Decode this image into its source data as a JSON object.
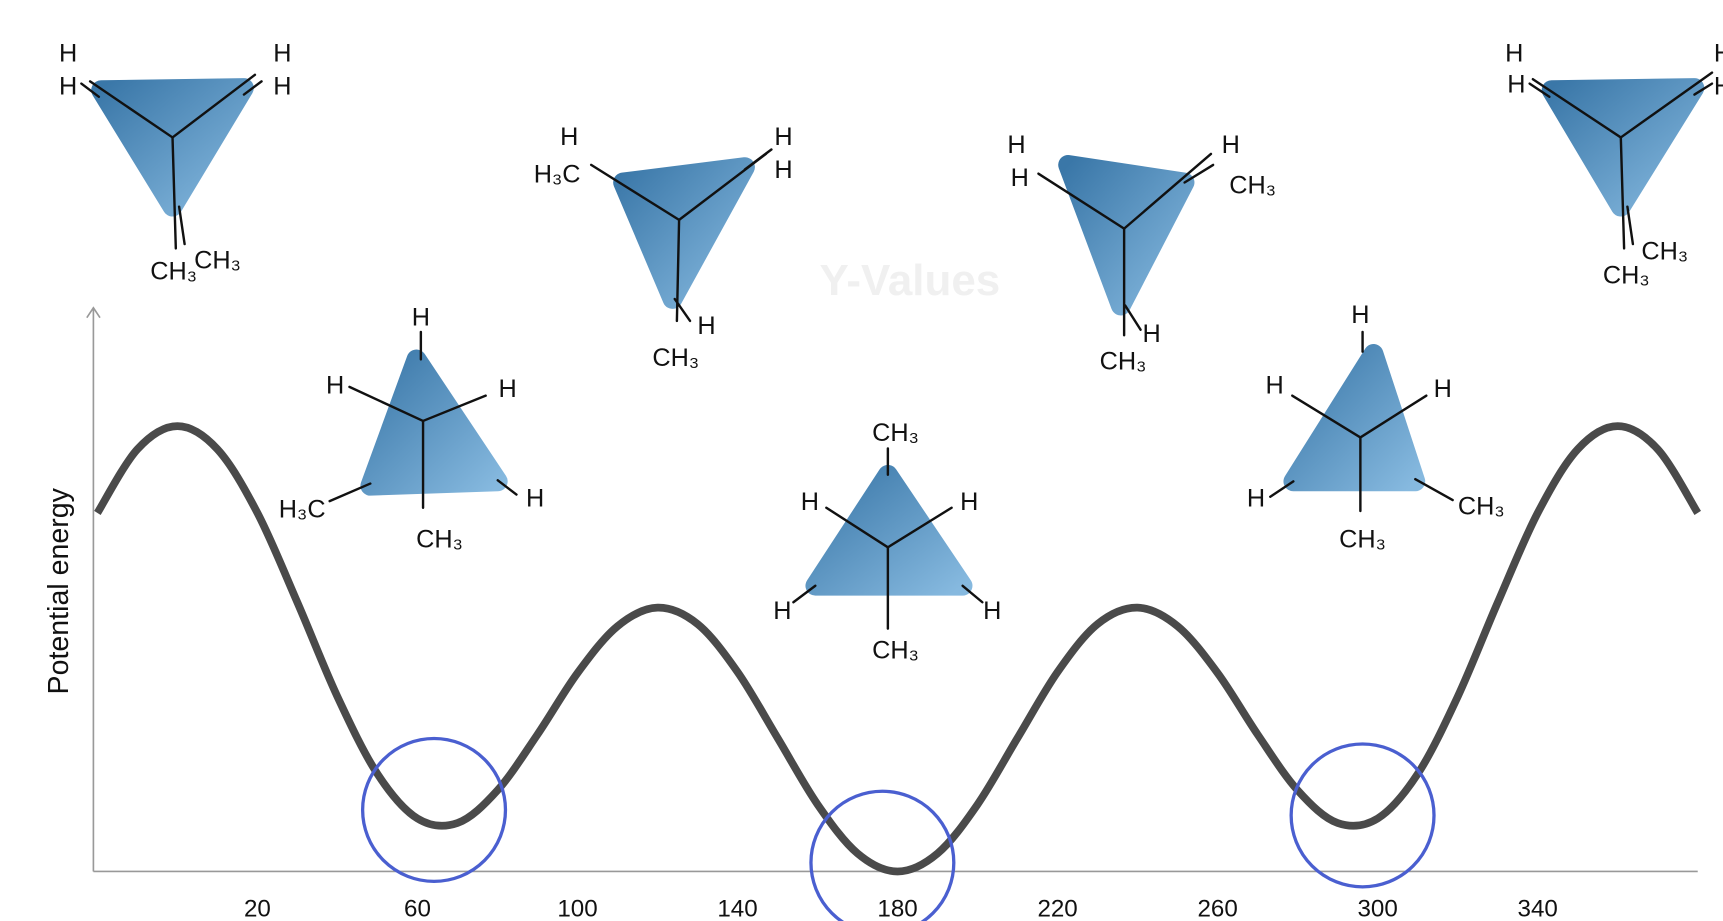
{
  "chart_data": {
    "type": "line",
    "y_label": "Potential energy",
    "watermark": "Y-Values",
    "x": [
      -20,
      -10,
      0,
      10,
      20,
      30,
      40,
      50,
      60,
      70,
      80,
      90,
      100,
      110,
      120,
      130,
      140,
      150,
      160,
      170,
      180,
      190,
      200,
      210,
      220,
      230,
      240,
      250,
      260,
      270,
      280,
      290,
      300,
      310,
      320,
      330,
      340,
      350,
      360,
      370,
      380
    ],
    "series": [
      {
        "color": "#4a4a4a",
        "values": [
          63.6,
          74.9,
          79.0,
          74.9,
          63.6,
          47.7,
          31.0,
          17.3,
          9.4,
          8.6,
          14.4,
          24.3,
          35.2,
          43.5,
          46.8,
          43.9,
          35.4,
          23.7,
          11.9,
          3.2,
          0.0,
          3.2,
          11.9,
          23.7,
          35.4,
          43.9,
          46.8,
          43.5,
          35.2,
          24.3,
          14.4,
          8.6,
          9.4,
          17.3,
          31.0,
          47.7,
          63.6,
          74.9,
          79.0,
          74.9,
          63.6
        ]
      }
    ],
    "xlim": [
      -21,
      380
    ],
    "ylim": [
      0,
      100
    ],
    "xticks": [
      20,
      60,
      100,
      140,
      180,
      220,
      260,
      300,
      340
    ],
    "grid": false,
    "conformations": [
      [
        "H",
        "H",
        "H",
        "H",
        "CH₃",
        "CH₃"
      ],
      [
        "H",
        "H",
        "H",
        "H₃C",
        "H",
        "CH₃"
      ],
      [
        "H",
        "H₃C",
        "H",
        "H",
        "H",
        "CH₃"
      ],
      [
        "CH₃",
        "H",
        "H",
        "H",
        "H",
        "CH₃"
      ],
      [
        "H",
        "H",
        "H",
        "CH₃",
        "H",
        "CH₃"
      ],
      [
        "H",
        "H",
        "H",
        "H",
        "CH₃",
        "CH₃"
      ],
      [
        "H",
        "H",
        "H",
        "H",
        "CH₃",
        "CH₃"
      ]
    ]
  }
}
